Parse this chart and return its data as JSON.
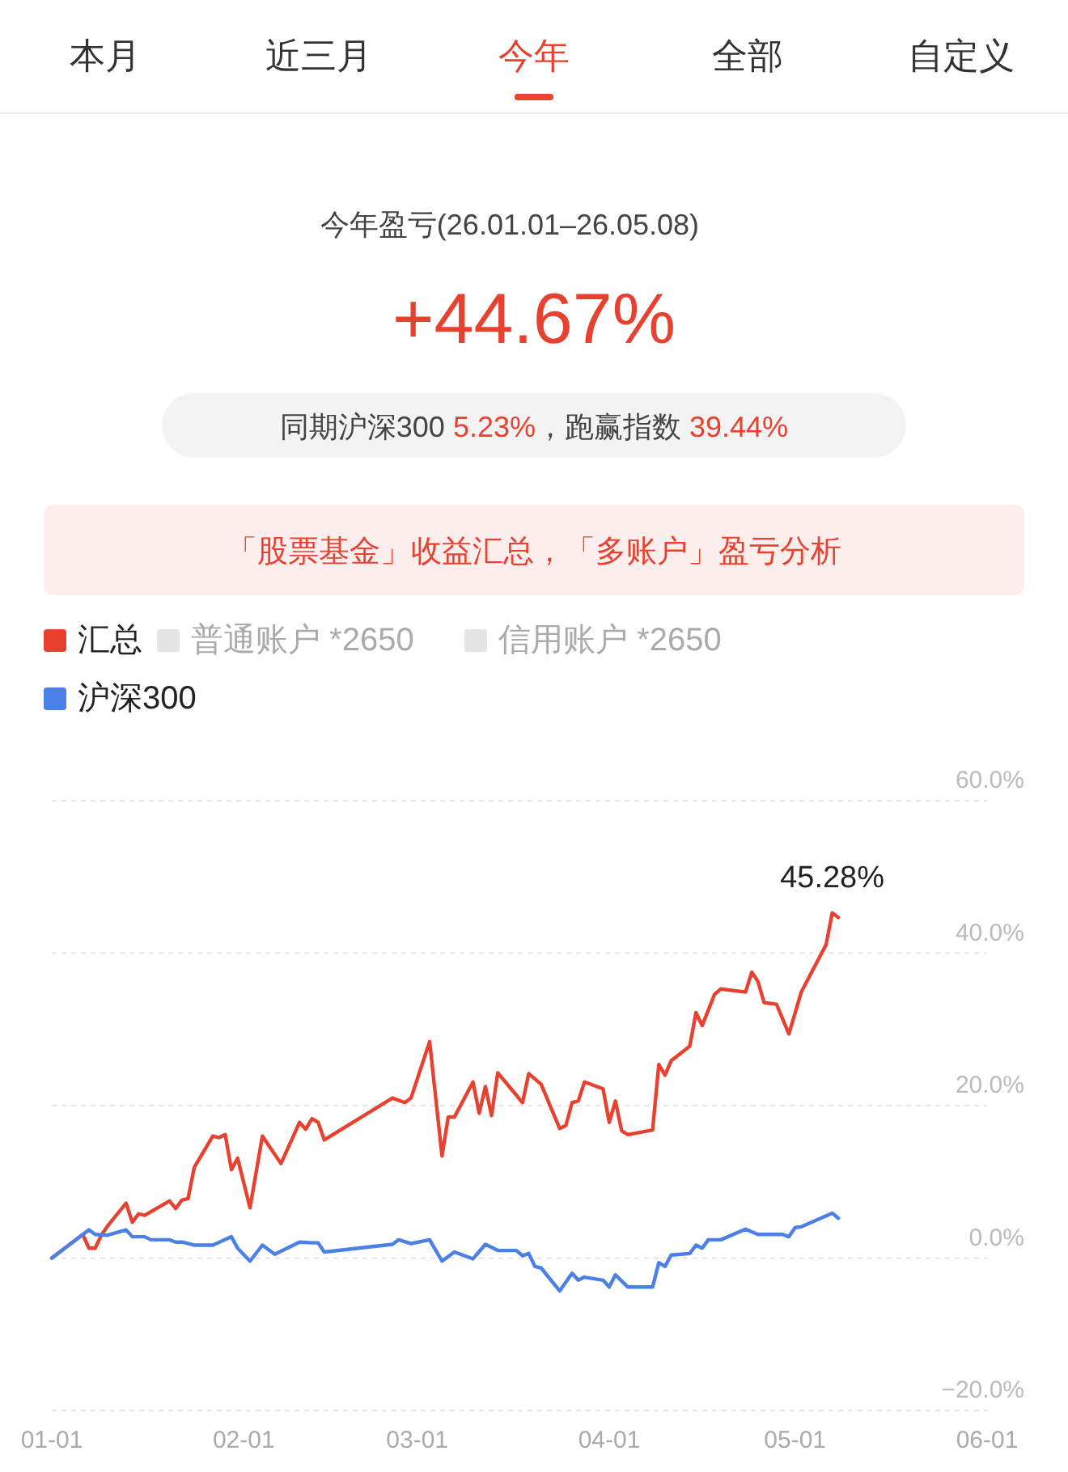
{
  "chart_data": {
    "type": "line",
    "title": "今年盈亏(26.01.01–26.05.08)",
    "subtitle": "+44.67%",
    "annotations": [
      "本月",
      "近三月",
      "今年",
      "全部",
      "自定义",
      "同期沪深300 5.23%，跑赢指数 39.44%",
      "「股票基金」收益汇总，「多账户」盈亏分析",
      {
        "text": "45.28%",
        "x": "--05-07",
        "y": 45.28
      }
    ],
    "series": [
      {
        "name": "汇总",
        "color": "#e8412f",
        "x": [
          "--01-01",
          "--01-06",
          "--01-07",
          "--01-08",
          "--01-09",
          "--01-10",
          "--01-13",
          "--01-14",
          "--01-15",
          "--01-16",
          "--01-20",
          "--01-21",
          "--01-22",
          "--01-23",
          "--01-24",
          "--01-27",
          "--01-28",
          "--01-29",
          "--01-30",
          "--01-31",
          "--02-02",
          "--02-04",
          "--02-07",
          "--02-10",
          "--02-11",
          "--02-12",
          "--02-13",
          "--02-14",
          "--02-25",
          "--02-27",
          "--02-28",
          "--03-03",
          "--03-05",
          "--03-06",
          "--03-07",
          "--03-10",
          "--03-11",
          "--03-12",
          "--03-13",
          "--03-14",
          "--03-18",
          "--03-19",
          "--03-21",
          "--03-24",
          "--03-25",
          "--03-26",
          "--03-27",
          "--03-28",
          "--03-31",
          "--04-01",
          "--04-02",
          "--04-03",
          "--04-04",
          "--04-08",
          "--04-09",
          "--04-10",
          "--04-11",
          "--04-14",
          "--04-15",
          "--04-16",
          "--04-18",
          "--04-19",
          "--04-23",
          "--04-24",
          "--04-25",
          "--04-26",
          "--04-28",
          "--04-30",
          "--05-02",
          "--05-06",
          "--05-07",
          "--05-08"
        ],
        "values": [
          0,
          3.1,
          1.3,
          1.3,
          3.0,
          4.2,
          7.2,
          4.7,
          5.8,
          5.6,
          7.5,
          6.5,
          7.6,
          7.8,
          11.9,
          16.0,
          15.8,
          16.2,
          11.6,
          13.1,
          6.6,
          16.0,
          12.4,
          17.8,
          16.9,
          18.3,
          17.8,
          15.5,
          21.0,
          20.4,
          21.0,
          28.4,
          13.4,
          18.5,
          18.5,
          23.1,
          19.0,
          22.5,
          18.7,
          24.3,
          20.4,
          24.2,
          22.8,
          17.0,
          17.4,
          20.4,
          20.6,
          23.1,
          22.2,
          17.8,
          20.6,
          16.7,
          16.2,
          16.8,
          25.4,
          24.0,
          25.9,
          27.8,
          32.2,
          30.5,
          34.6,
          35.3,
          34.9,
          37.5,
          36.3,
          33.5,
          33.3,
          29.4,
          34.9,
          41.1,
          45.28,
          44.67
        ]
      },
      {
        "name": "普通账户 *2650",
        "color": "#e5e5e5"
      },
      {
        "name": "信用账户 *2650",
        "color": "#e5e5e5"
      },
      {
        "name": "沪深300",
        "color": "#4a80e8",
        "x": [
          "--01-01",
          "--01-07",
          "--01-08",
          "--01-10",
          "--01-13",
          "--01-14",
          "--01-16",
          "--01-17",
          "--01-20",
          "--01-21",
          "--01-22",
          "--01-24",
          "--01-27",
          "--01-30",
          "--01-31",
          "--02-02",
          "--02-04",
          "--02-06",
          "--02-10",
          "--02-12",
          "--02-13",
          "--02-14",
          "--02-25",
          "--02-26",
          "--02-28",
          "--03-03",
          "--03-05",
          "--03-07",
          "--03-10",
          "--03-12",
          "--03-14",
          "--03-17",
          "--03-18",
          "--03-19",
          "--03-20",
          "--03-21",
          "--03-24",
          "--03-26",
          "--03-27",
          "--03-28",
          "--03-31",
          "--04-01",
          "--04-02",
          "--04-04",
          "--04-08",
          "--04-09",
          "--04-10",
          "--04-11",
          "--04-14",
          "--04-15",
          "--04-16",
          "--04-17",
          "--04-19",
          "--04-23",
          "--04-25",
          "--04-29",
          "--04-30",
          "--05-01",
          "--05-02",
          "--05-07",
          "--05-08"
        ],
        "values": [
          0,
          3.7,
          3.1,
          3.0,
          3.7,
          2.8,
          2.8,
          2.4,
          2.4,
          2.1,
          2.1,
          1.7,
          1.7,
          2.8,
          1.3,
          -0.4,
          1.7,
          0.5,
          2.1,
          2.0,
          2.0,
          0.8,
          1.8,
          2.4,
          1.9,
          2.4,
          -0.4,
          0.8,
          -0.1,
          1.8,
          1.0,
          1.0,
          0.3,
          0.6,
          -1.1,
          -1.3,
          -4.3,
          -2.0,
          -2.9,
          -2.5,
          -2.9,
          -3.8,
          -2.2,
          -3.8,
          -3.8,
          -0.6,
          -1.1,
          0.4,
          0.6,
          1.7,
          1.3,
          2.4,
          2.4,
          3.8,
          3.1,
          3.1,
          2.8,
          4.0,
          4.1,
          5.9,
          5.23
        ]
      }
    ],
    "xlim": [
      "--01-01",
      "--06-01"
    ],
    "xticks": [
      {
        "value": "--01-01",
        "label": "01-01"
      },
      {
        "value": "--02-01",
        "label": "02-01"
      },
      {
        "value": "--03-01",
        "label": "03-01"
      },
      {
        "value": "--04-01",
        "label": "04-01"
      },
      {
        "value": "--05-01",
        "label": "05-01"
      },
      {
        "value": "--06-01",
        "label": "06-01"
      }
    ],
    "ylim": [
      -20,
      60
    ],
    "yticks": [
      {
        "value": -20,
        "label": "−20.0%"
      },
      {
        "value": 0,
        "label": "0.0%"
      },
      {
        "value": 20,
        "label": "20.0%"
      },
      {
        "value": 40,
        "label": "40.0%"
      },
      {
        "value": 60,
        "label": "60.0%"
      }
    ],
    "grid": "y",
    "legend": "top left"
  }
}
